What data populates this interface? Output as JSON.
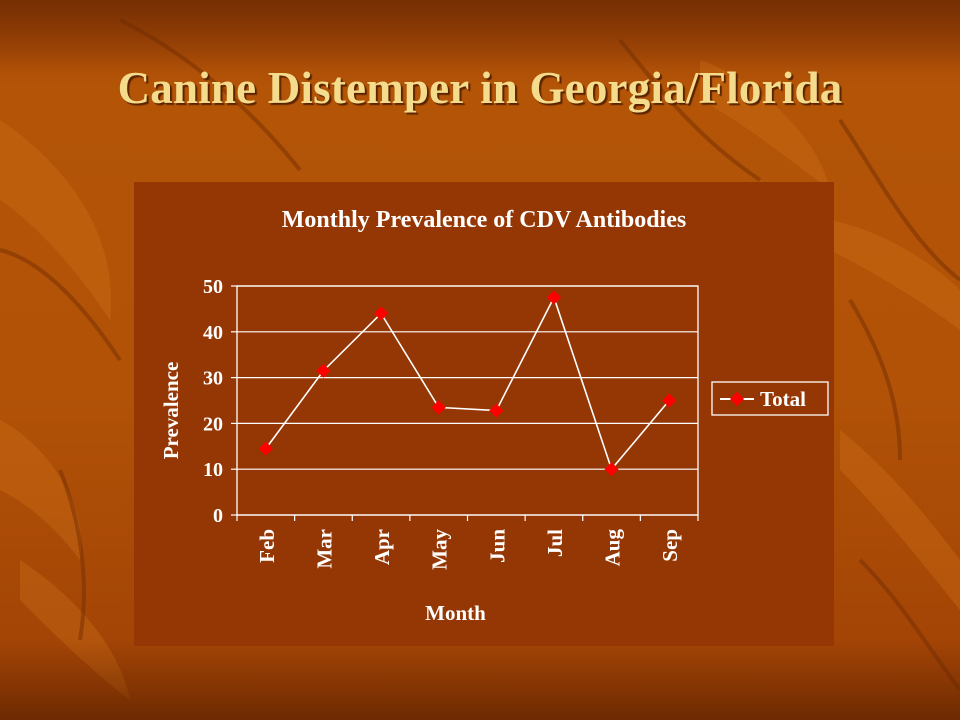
{
  "slide": {
    "title": "Canine Distemper in Georgia/Florida"
  },
  "colors": {
    "background": "#b15207",
    "chart_area": "#953704",
    "title_text": "#f5dc8c",
    "series_line": "#ffffff",
    "series_marker": "#ff0000"
  },
  "chart_data": {
    "type": "line",
    "title": "Monthly Prevalence of CDV Antibodies",
    "xlabel": "Month",
    "ylabel": "Prevalence",
    "categories": [
      "Feb",
      "Mar",
      "Apr",
      "May",
      "Jun",
      "Jul",
      "Aug",
      "Sep"
    ],
    "series": [
      {
        "name": "Total",
        "values": [
          14.5,
          31.5,
          44,
          23.5,
          22.8,
          47.5,
          10,
          25
        ]
      }
    ],
    "ylim": [
      0,
      50
    ],
    "yticks": [
      0,
      10,
      20,
      30,
      40,
      50
    ],
    "grid": "horizontal",
    "legend": "right"
  }
}
